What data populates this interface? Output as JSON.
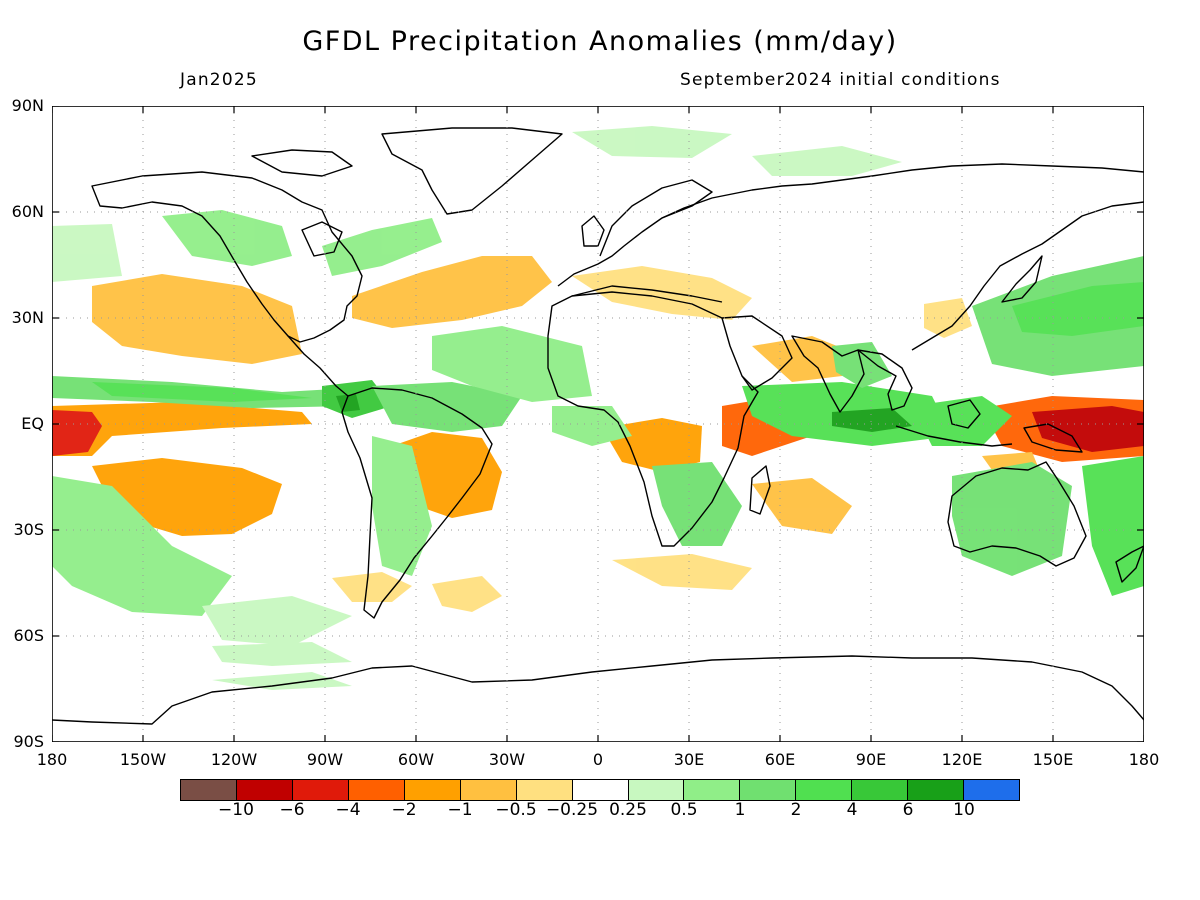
{
  "title": "GFDL Precipitation Anomalies (mm/day)",
  "left_subtitle": "Jan2025",
  "right_subtitle": "September2024 initial conditions",
  "lat_labels": [
    "90N",
    "60N",
    "30N",
    "EQ",
    "30S",
    "60S",
    "90S"
  ],
  "lon_labels": [
    "180",
    "150W",
    "120W",
    "90W",
    "60W",
    "30W",
    "0",
    "30E",
    "60E",
    "90E",
    "120E",
    "150E",
    "180"
  ],
  "colorbar": {
    "colors": [
      "#7a4e45",
      "#c00000",
      "#e01a0a",
      "#ff6000",
      "#ffa000",
      "#ffc040",
      "#ffe080",
      "#ffffff",
      "#c8f8c0",
      "#90ee88",
      "#70e070",
      "#50e050",
      "#38c838",
      "#18a018",
      "#1e6eeb"
    ],
    "labels": [
      "-10",
      "-6",
      "-4",
      "-2",
      "-1",
      "-0.5",
      "-0.25",
      "0.25",
      "0.5",
      "1",
      "2",
      "4",
      "6",
      "10"
    ]
  },
  "chart_data": {
    "type": "heatmap",
    "title": "GFDL Precipitation Anomalies (mm/day)",
    "subtitle_left": "Jan2025",
    "subtitle_right": "September2024 initial conditions",
    "x_range": [
      -180,
      180
    ],
    "y_range": [
      -90,
      90
    ],
    "grid": true,
    "levels": [
      -10,
      -6,
      -4,
      -2,
      -1,
      -0.5,
      -0.25,
      0.25,
      0.5,
      1,
      2,
      4,
      6,
      10
    ],
    "anomaly_regions": [
      {
        "lon": 165,
        "lat": 0,
        "value": -6
      },
      {
        "lon": 140,
        "lat": 5,
        "value": -4
      },
      {
        "lon": -170,
        "lat": -5,
        "value": -4
      },
      {
        "lon": -125,
        "lat": -20,
        "value": -2
      },
      {
        "lon": -135,
        "lat": 28,
        "value": -1
      },
      {
        "lon": -40,
        "lat": -15,
        "value": -1
      },
      {
        "lon": 50,
        "lat": -2,
        "value": -4
      },
      {
        "lon": 25,
        "lat": -5,
        "value": -2
      },
      {
        "lon": -30,
        "lat": 35,
        "value": -1
      },
      {
        "lon": 95,
        "lat": -2,
        "value": 6
      },
      {
        "lon": -80,
        "lat": 5,
        "value": 4
      },
      {
        "lon": -60,
        "lat": 0,
        "value": 2
      },
      {
        "lon": -130,
        "lat": 8,
        "value": 2
      },
      {
        "lon": 130,
        "lat": 25,
        "value": 2
      },
      {
        "lon": 135,
        "lat": -25,
        "value": 2
      },
      {
        "lon": -50,
        "lat": 20,
        "value": 1
      },
      {
        "lon": 170,
        "lat": 40,
        "value": 1
      },
      {
        "lon": -160,
        "lat": -45,
        "value": 0.5
      }
    ]
  }
}
